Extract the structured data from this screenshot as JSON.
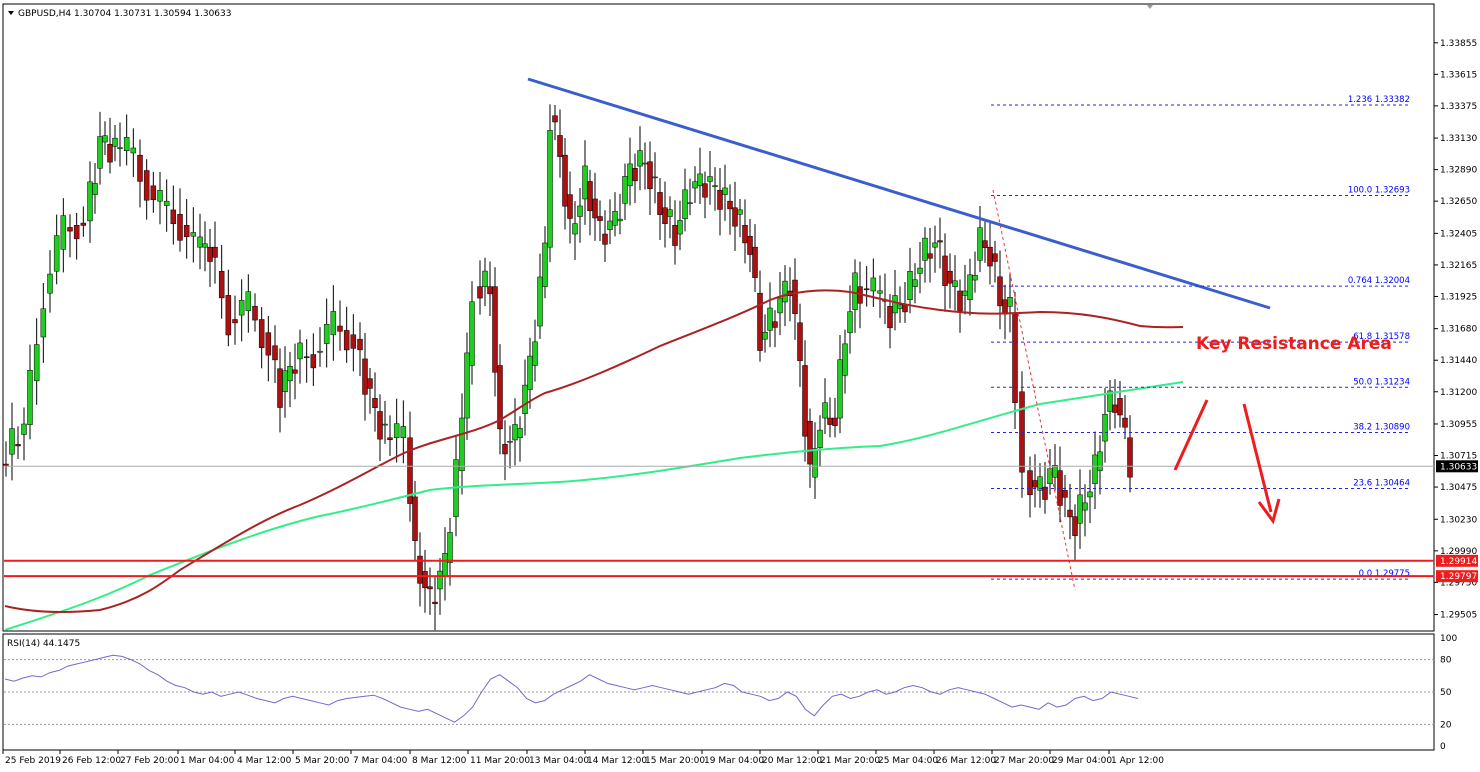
{
  "chart_data": {
    "type": "candlestick",
    "title": "GBPUSD,H4  1.30704 1.30731 1.30594 1.30633",
    "symbol": "GBPUSD",
    "timeframe": "H4",
    "ohlc_header": "1.30704 1.30731 1.30594 1.30633",
    "y_range": [
      1.2938,
      1.3415
    ],
    "price_ticks": [
      "1.33855",
      "1.33615",
      "1.33375",
      "1.33130",
      "1.32890",
      "1.32650",
      "1.32405",
      "1.32165",
      "1.31925",
      "1.31680",
      "1.31440",
      "1.31200",
      "1.30955",
      "1.30715",
      "1.30475",
      "1.30230",
      "1.29990",
      "1.29750",
      "1.29505"
    ],
    "current_price": "1.30633",
    "x_labels": [
      "25 Feb 2019",
      "26 Feb 12:00",
      "27 Feb 20:00",
      "1 Mar 04:00",
      "4 Mar 12:00",
      "5 Mar 20:00",
      "7 Mar 04:00",
      "8 Mar 12:00",
      "11 Mar 20:00",
      "13 Mar 04:00",
      "14 Mar 12:00",
      "15 Mar 20:00",
      "19 Mar 04:00",
      "20 Mar 12:00",
      "21 Mar 20:00",
      "25 Mar 04:00",
      "26 Mar 12:00",
      "27 Mar 20:00",
      "29 Mar 04:00",
      "1 Apr 12:00"
    ],
    "fibonacci": [
      {
        "label": "1.236 1.33382",
        "value": 1.33382
      },
      {
        "label": "100.0 1.32693",
        "value": 1.32693
      },
      {
        "label": "0.764 1.32004",
        "value": 1.32004
      },
      {
        "label": "61.8 1.31578",
        "value": 1.31578
      },
      {
        "label": "50.0 1.31234",
        "value": 1.31234
      },
      {
        "label": "38.2 1.30890",
        "value": 1.3089
      },
      {
        "label": "23.6 1.30464",
        "value": 1.30464
      },
      {
        "label": "0.0 1.29775",
        "value": 1.29775
      }
    ],
    "support_lines": [
      {
        "label": "1.29914",
        "value": 1.29914
      },
      {
        "label": "1.29797",
        "value": 1.29797
      }
    ],
    "annotation": "Key Resistance Area",
    "rsi": {
      "label": "RSI(14) 44.1475",
      "levels": [
        "80",
        "50",
        "20",
        "0",
        "100"
      ],
      "values": [
        62,
        60,
        63,
        65,
        64,
        68,
        70,
        74,
        76,
        78,
        80,
        82,
        84,
        83,
        80,
        76,
        70,
        66,
        60,
        56,
        54,
        50,
        48,
        50,
        46,
        48,
        50,
        47,
        44,
        42,
        40,
        44,
        46,
        44,
        42,
        40,
        38,
        42,
        44,
        45,
        46,
        47,
        44,
        40,
        36,
        34,
        32,
        34,
        30,
        26,
        22,
        28,
        36,
        50,
        62,
        66,
        60,
        54,
        44,
        40,
        42,
        48,
        52,
        56,
        60,
        66,
        62,
        58,
        56,
        54,
        52,
        54,
        56,
        54,
        52,
        50,
        48,
        50,
        52,
        54,
        58,
        56,
        50,
        48,
        46,
        42,
        44,
        50,
        46,
        34,
        28,
        38,
        46,
        48,
        44,
        46,
        50,
        52,
        48,
        50,
        54,
        56,
        54,
        50,
        48,
        52,
        54,
        52,
        50,
        48,
        44,
        40,
        36,
        38,
        36,
        34,
        40,
        36,
        38,
        44,
        46,
        42,
        44,
        50,
        48,
        46,
        44
      ]
    }
  }
}
